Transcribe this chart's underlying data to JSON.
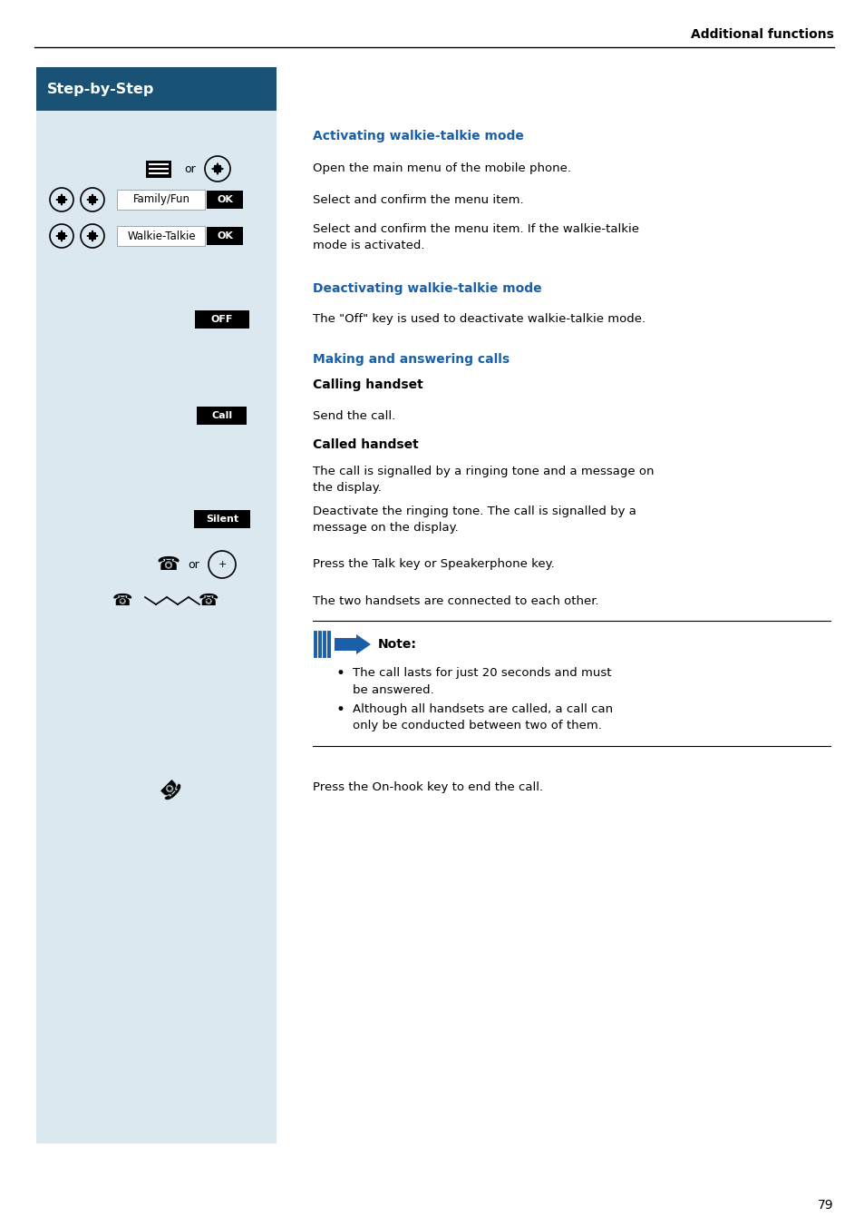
{
  "page_bg": "#ffffff",
  "left_panel_bg": "#dce8f0",
  "header_text": "Additional functions",
  "step_by_step_bg": "#1a5276",
  "step_by_step_text": "Step-by-Step",
  "page_number": "79",
  "section_color": "#1a5fa8",
  "content": {
    "activating_heading": "Activating walkie-talkie mode",
    "text1": "Open the main menu of the mobile phone.",
    "text2": "Select and confirm the menu item.",
    "text3a": "Select and confirm the menu item. If the walkie-talkie",
    "text3b": "mode is activated.",
    "deactivating_heading": "Deactivating walkie-talkie mode",
    "text4": "The \"Off\" key is used to deactivate walkie-talkie mode.",
    "making_heading": "Making and answering calls",
    "calling_sub": "Calling handset",
    "text5": "Send the call.",
    "called_sub": "Called handset",
    "text6a": "The call is signalled by a ringing tone and a message on",
    "text6b": "the display.",
    "text7a": "Deactivate the ringing tone. The call is signalled by a",
    "text7b": "message on the display.",
    "text8": "Press the Talk key or Speakerphone key.",
    "text9": "The two handsets are connected to each other.",
    "note_heading": "Note:",
    "bullet1a": "The call lasts for just 20 seconds and must",
    "bullet1b": "be answered.",
    "bullet2a": "Although all handsets are called, a call can",
    "bullet2b": "only be conducted between two of them.",
    "text10": "Press the On-hook key to end the call."
  }
}
